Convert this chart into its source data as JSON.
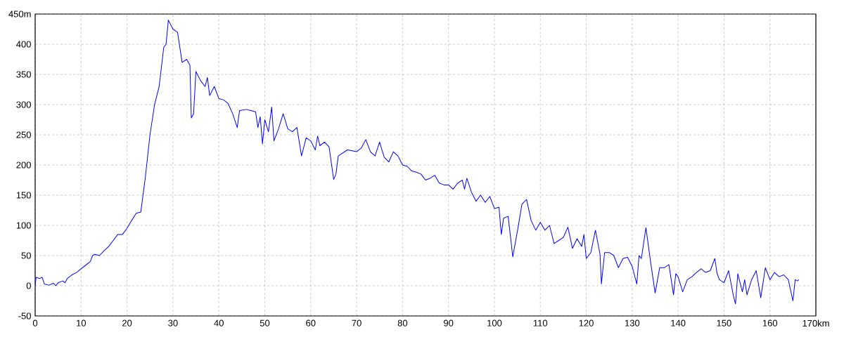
{
  "chart_data": {
    "type": "line",
    "color": "#0000ff",
    "grid": true,
    "line_style": "solid",
    "xlim": [
      0,
      170
    ],
    "ylim": [
      -50,
      450
    ],
    "xticks": [
      0,
      10,
      20,
      30,
      40,
      50,
      60,
      70,
      80,
      90,
      100,
      110,
      120,
      130,
      140,
      150,
      160,
      {
        "value": 170,
        "label": "170km"
      }
    ],
    "yticks": [
      -50,
      0,
      50,
      100,
      150,
      200,
      250,
      300,
      350,
      400,
      {
        "value": 450,
        "label": "450m"
      }
    ],
    "x": [
      0,
      0.2,
      1,
      1.5,
      2,
      3,
      4,
      4.5,
      5,
      6,
      6.5,
      7,
      8,
      9,
      10,
      11,
      12,
      12.5,
      13,
      14,
      15,
      16,
      17,
      18,
      19,
      20,
      21,
      22,
      23,
      24,
      25,
      26,
      27,
      28,
      28.5,
      29,
      30,
      31,
      32,
      33,
      33.7,
      34,
      34.5,
      35,
      36,
      37,
      37.5,
      38,
      39,
      40,
      41,
      42,
      43,
      44,
      44.5,
      46,
      47,
      48,
      48.5,
      49,
      49.5,
      50,
      50.8,
      51.5,
      52,
      53,
      54,
      55,
      56,
      57,
      58,
      59,
      60,
      61,
      61.5,
      62,
      63,
      64,
      65,
      65.5,
      66,
      68,
      70,
      71,
      72,
      73,
      74,
      75,
      76,
      77,
      78,
      79,
      80,
      81,
      82,
      83,
      84,
      85,
      86,
      87,
      88,
      89,
      90,
      91,
      92,
      93,
      93.5,
      94,
      95,
      96,
      97,
      98,
      99,
      100,
      101,
      101.5,
      102,
      103,
      104,
      105,
      106,
      107,
      108,
      109,
      110,
      111,
      112,
      113,
      114,
      115,
      116,
      117,
      118,
      119,
      119.5,
      120,
      121,
      122,
      123,
      123.3,
      124,
      125,
      126,
      127,
      128,
      129,
      130,
      131,
      131.5,
      132,
      133,
      134,
      135,
      136,
      137,
      138,
      139,
      139.5,
      140,
      141,
      142,
      143,
      144,
      145,
      146,
      147,
      148,
      148.5,
      149,
      150,
      151,
      152,
      152.5,
      153,
      154,
      154.5,
      155,
      156,
      157,
      158,
      159,
      160,
      161,
      162,
      163,
      164,
      165,
      165.5,
      166,
      166.3
    ],
    "values": [
      0,
      14,
      12,
      14,
      3,
      1,
      4,
      0,
      5,
      8,
      5,
      12,
      18,
      22,
      28,
      34,
      40,
      50,
      52,
      50,
      58,
      65,
      75,
      85,
      85,
      95,
      108,
      120,
      122,
      180,
      250,
      300,
      330,
      395,
      400,
      440,
      425,
      420,
      370,
      375,
      365,
      278,
      285,
      355,
      340,
      330,
      345,
      315,
      330,
      310,
      308,
      302,
      285,
      262,
      290,
      292,
      290,
      288,
      262,
      280,
      235,
      275,
      255,
      296,
      240,
      260,
      285,
      260,
      255,
      262,
      215,
      245,
      240,
      225,
      248,
      232,
      238,
      230,
      176,
      185,
      215,
      225,
      222,
      228,
      242,
      222,
      215,
      238,
      213,
      205,
      222,
      215,
      200,
      198,
      190,
      188,
      185,
      175,
      178,
      183,
      170,
      167,
      167,
      160,
      170,
      175,
      160,
      178,
      155,
      140,
      150,
      138,
      148,
      128,
      130,
      85,
      112,
      115,
      48,
      90,
      135,
      143,
      108,
      92,
      105,
      92,
      100,
      70,
      75,
      80,
      97,
      62,
      78,
      65,
      85,
      45,
      55,
      92,
      52,
      3,
      55,
      55,
      50,
      30,
      45,
      47,
      32,
      3,
      50,
      45,
      96,
      40,
      -12,
      30,
      30,
      35,
      -15,
      20,
      15,
      -10,
      10,
      15,
      22,
      28,
      22,
      25,
      45,
      20,
      10,
      5,
      25,
      -15,
      -30,
      20,
      -10,
      10,
      -15,
      10,
      25,
      -20,
      30,
      10,
      22,
      15,
      18,
      10,
      -25,
      10,
      8,
      10
    ]
  }
}
